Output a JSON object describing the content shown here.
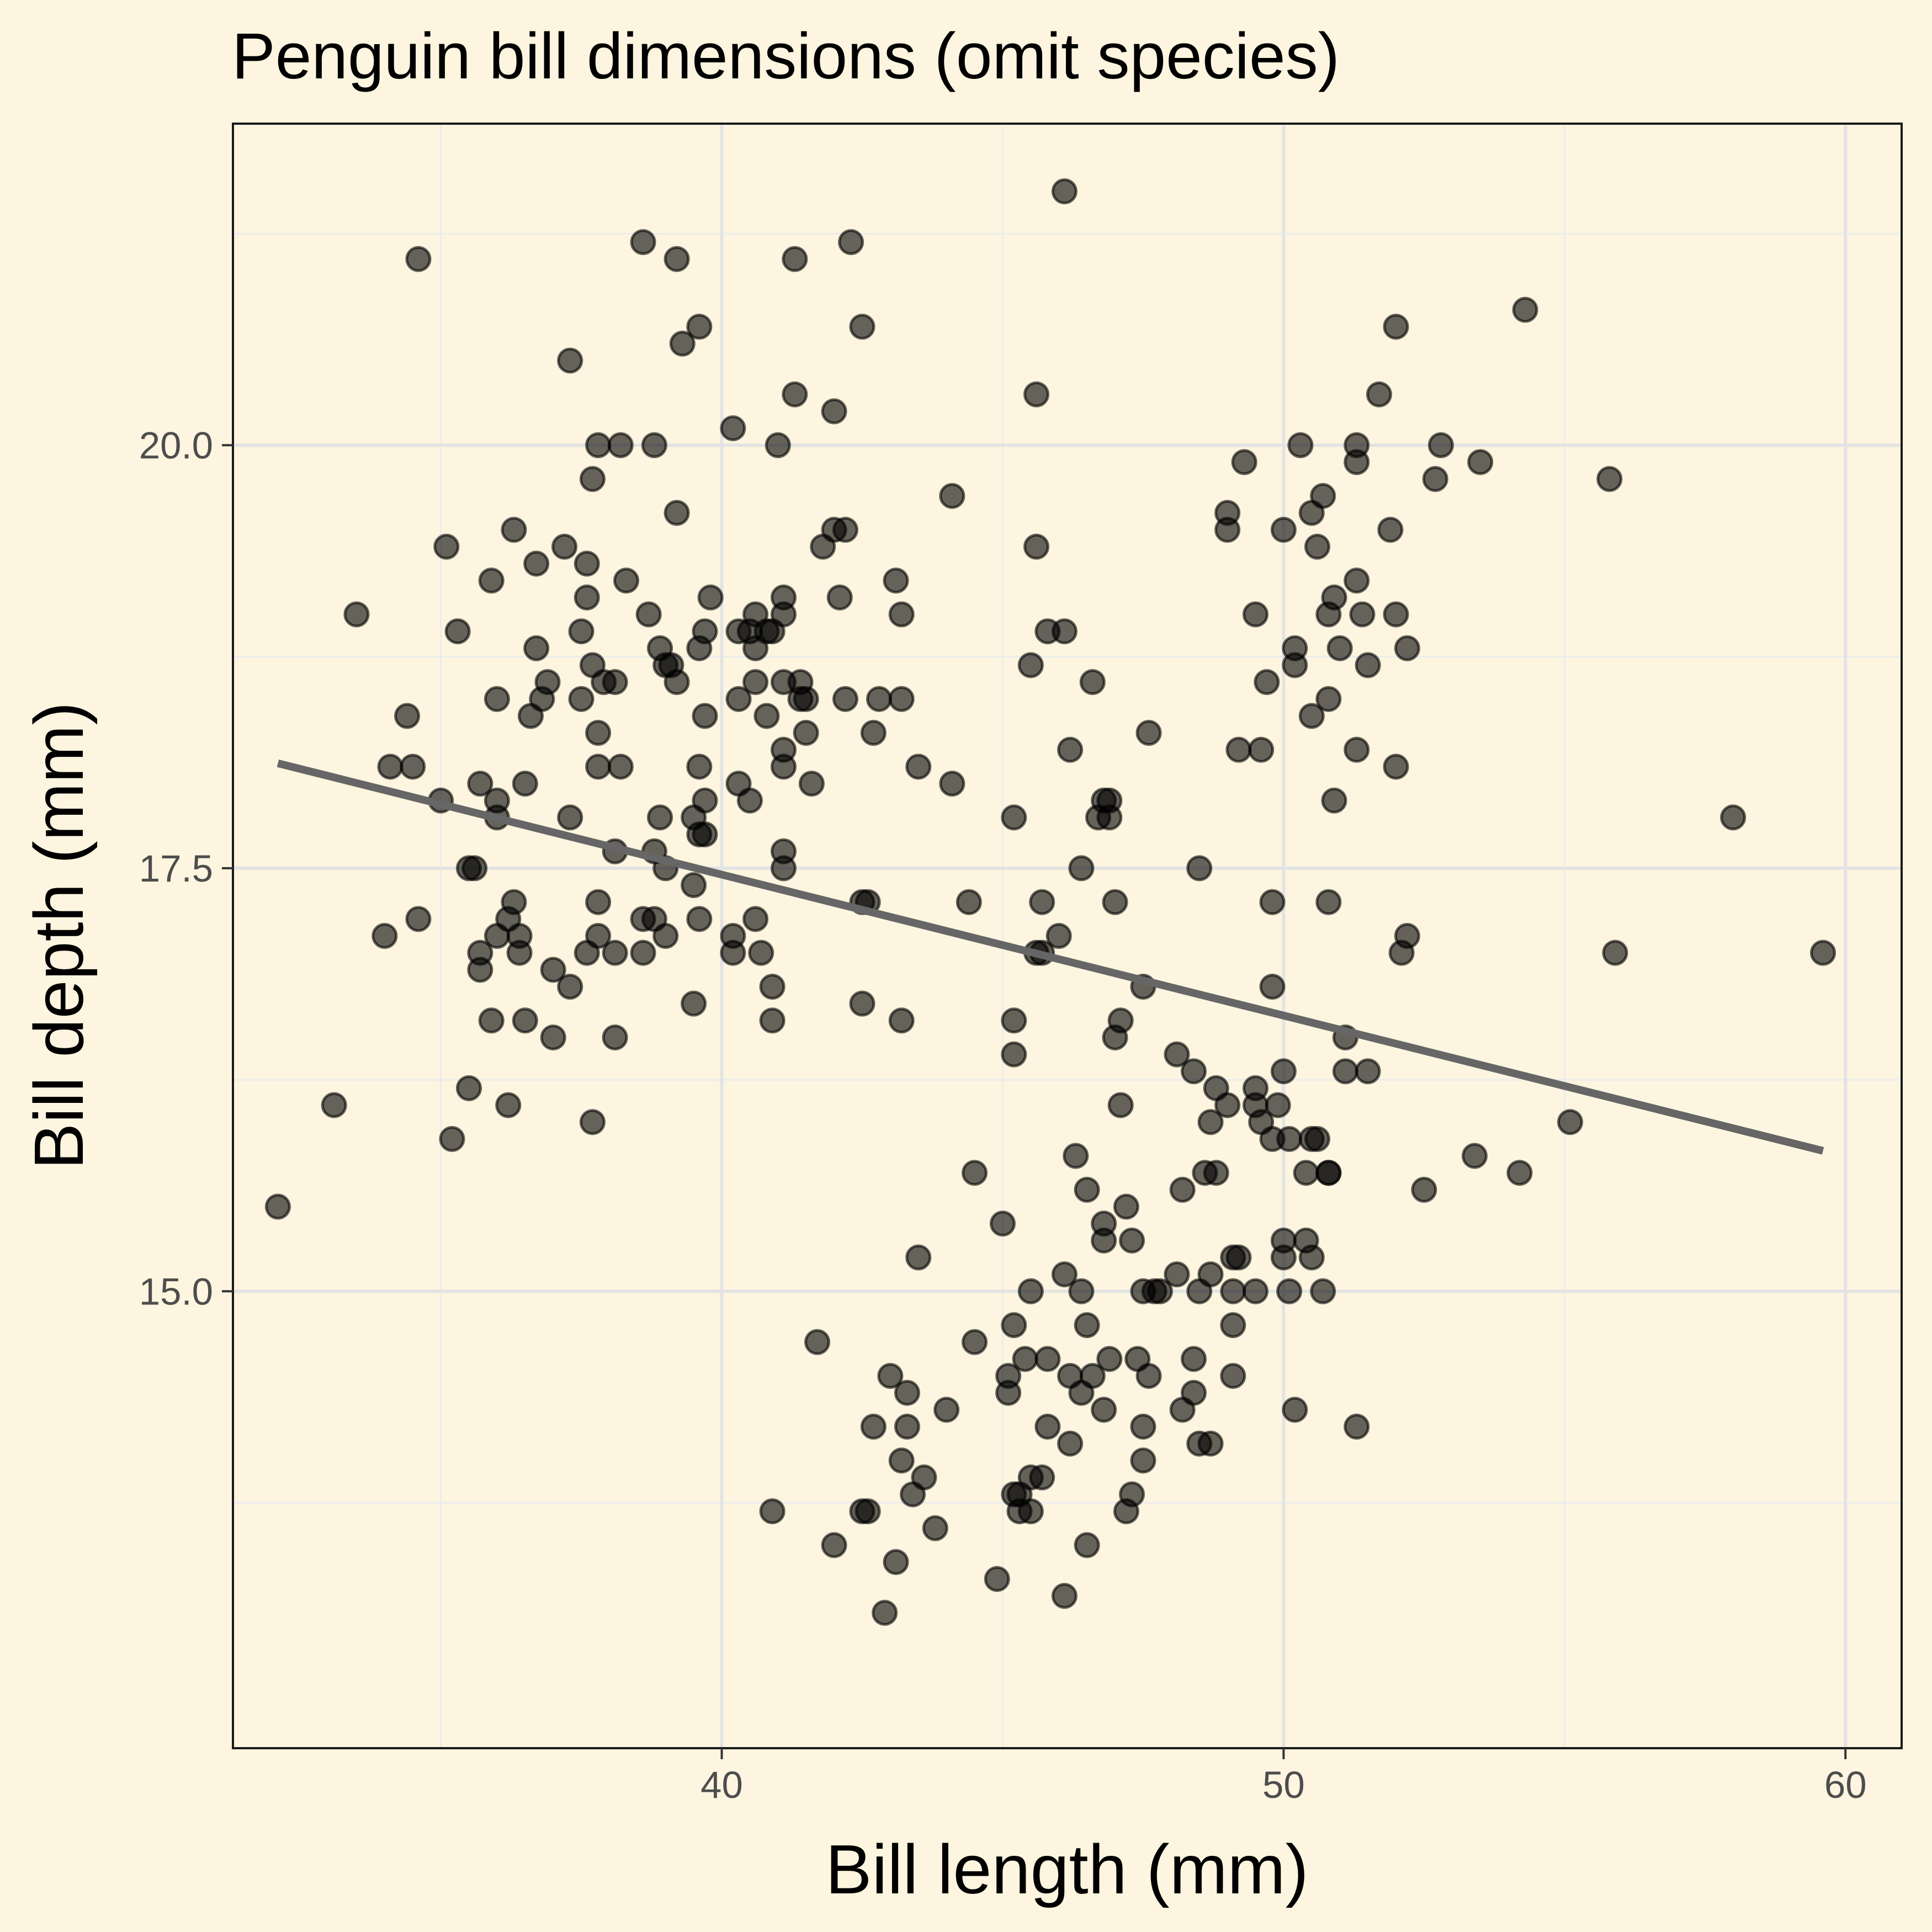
{
  "chart_data": {
    "type": "scatter",
    "title": "Penguin bill dimensions (omit species)",
    "xlabel": "Bill length (mm)",
    "ylabel": "Bill depth (mm)",
    "xlim": [
      31.3,
      61.0
    ],
    "ylim": [
      12.3,
      21.9
    ],
    "x_ticks": [
      40,
      50,
      60
    ],
    "x_tick_labels": [
      "40",
      "50",
      "60"
    ],
    "y_ticks": [
      15.0,
      17.5,
      20.0
    ],
    "y_tick_labels": [
      "15.0",
      "17.5",
      "20.0"
    ],
    "x_minor_ticks": [
      35,
      45,
      55
    ],
    "y_minor_ticks": [
      13.75,
      16.25,
      18.75,
      21.25
    ],
    "grid": true,
    "legend": "none",
    "colors": {
      "background": "#fdf5df",
      "point": "#000000",
      "trend_line": "#666666",
      "grid": "#e3e3e3"
    },
    "trend_line": {
      "x": [
        32.1,
        59.6
      ],
      "y": [
        18.12,
        15.83
      ]
    },
    "points": [
      [
        32.1,
        15.5
      ],
      [
        33.1,
        16.1
      ],
      [
        33.5,
        19.0
      ],
      [
        34.0,
        17.1
      ],
      [
        34.1,
        18.1
      ],
      [
        34.4,
        18.4
      ],
      [
        34.5,
        18.1
      ],
      [
        34.6,
        21.1
      ],
      [
        34.6,
        17.2
      ],
      [
        35.0,
        17.9
      ],
      [
        35.1,
        19.4
      ],
      [
        35.2,
        15.9
      ],
      [
        35.3,
        18.9
      ],
      [
        35.5,
        17.5
      ],
      [
        35.5,
        16.2
      ],
      [
        35.6,
        17.5
      ],
      [
        35.7,
        18.0
      ],
      [
        35.7,
        17.0
      ],
      [
        35.7,
        16.9
      ],
      [
        35.9,
        16.6
      ],
      [
        35.9,
        19.2
      ],
      [
        36.0,
        18.5
      ],
      [
        36.0,
        17.9
      ],
      [
        36.0,
        17.8
      ],
      [
        36.0,
        17.1
      ],
      [
        36.2,
        17.2
      ],
      [
        36.2,
        16.1
      ],
      [
        36.3,
        19.5
      ],
      [
        36.3,
        17.3
      ],
      [
        36.4,
        17.1
      ],
      [
        36.4,
        17.0
      ],
      [
        36.5,
        18.0
      ],
      [
        36.5,
        16.6
      ],
      [
        36.6,
        18.4
      ],
      [
        36.7,
        19.3
      ],
      [
        36.7,
        18.8
      ],
      [
        36.8,
        18.5
      ],
      [
        36.9,
        18.6
      ],
      [
        37.0,
        16.9
      ],
      [
        37.0,
        16.5
      ],
      [
        37.2,
        19.4
      ],
      [
        37.3,
        20.5
      ],
      [
        37.3,
        17.8
      ],
      [
        37.3,
        16.8
      ],
      [
        37.5,
        18.9
      ],
      [
        37.5,
        18.5
      ],
      [
        37.6,
        19.3
      ],
      [
        37.6,
        19.1
      ],
      [
        37.6,
        17.0
      ],
      [
        37.7,
        18.7
      ],
      [
        37.7,
        16.0
      ],
      [
        37.7,
        19.8
      ],
      [
        37.8,
        20.0
      ],
      [
        37.8,
        18.3
      ],
      [
        37.8,
        18.1
      ],
      [
        37.8,
        17.3
      ],
      [
        37.8,
        17.1
      ],
      [
        37.9,
        18.6
      ],
      [
        38.1,
        18.6
      ],
      [
        38.1,
        17.6
      ],
      [
        38.1,
        17.0
      ],
      [
        38.1,
        16.5
      ],
      [
        38.2,
        20.0
      ],
      [
        38.2,
        18.1
      ],
      [
        38.3,
        19.2
      ],
      [
        38.6,
        21.2
      ],
      [
        38.6,
        17.2
      ],
      [
        38.6,
        17.0
      ],
      [
        38.7,
        19.0
      ],
      [
        38.8,
        20.0
      ],
      [
        38.8,
        17.6
      ],
      [
        38.8,
        17.2
      ],
      [
        38.9,
        18.8
      ],
      [
        38.9,
        17.8
      ],
      [
        39.0,
        18.7
      ],
      [
        39.0,
        17.5
      ],
      [
        39.0,
        17.1
      ],
      [
        39.1,
        18.7
      ],
      [
        39.2,
        21.1
      ],
      [
        39.2,
        19.6
      ],
      [
        39.2,
        18.6
      ],
      [
        39.3,
        20.6
      ],
      [
        39.5,
        17.8
      ],
      [
        39.5,
        17.4
      ],
      [
        39.5,
        16.7
      ],
      [
        39.6,
        20.7
      ],
      [
        39.6,
        18.8
      ],
      [
        39.6,
        18.1
      ],
      [
        39.6,
        17.7
      ],
      [
        39.6,
        17.2
      ],
      [
        39.7,
        18.9
      ],
      [
        39.7,
        18.4
      ],
      [
        39.7,
        17.9
      ],
      [
        39.7,
        17.7
      ],
      [
        39.8,
        19.1
      ],
      [
        40.2,
        20.1
      ],
      [
        40.2,
        17.1
      ],
      [
        40.2,
        17.0
      ],
      [
        40.3,
        18.9
      ],
      [
        40.3,
        18.5
      ],
      [
        40.3,
        18.0
      ],
      [
        40.5,
        18.9
      ],
      [
        40.5,
        17.9
      ],
      [
        40.6,
        19.0
      ],
      [
        40.6,
        18.8
      ],
      [
        40.6,
        18.6
      ],
      [
        40.6,
        17.2
      ],
      [
        40.7,
        17.0
      ],
      [
        40.8,
        18.9
      ],
      [
        40.8,
        18.4
      ],
      [
        40.9,
        18.9
      ],
      [
        40.9,
        16.8
      ],
      [
        40.9,
        16.6
      ],
      [
        41.0,
        20.0
      ],
      [
        41.1,
        19.1
      ],
      [
        41.1,
        19.0
      ],
      [
        41.1,
        18.6
      ],
      [
        41.1,
        18.2
      ],
      [
        41.1,
        18.1
      ],
      [
        41.1,
        17.6
      ],
      [
        41.1,
        17.5
      ],
      [
        41.3,
        21.1
      ],
      [
        41.3,
        20.3
      ],
      [
        41.4,
        18.6
      ],
      [
        41.4,
        18.5
      ],
      [
        41.5,
        18.5
      ],
      [
        41.5,
        18.3
      ],
      [
        41.6,
        18.0
      ],
      [
        41.8,
        19.4
      ],
      [
        42.0,
        20.2
      ],
      [
        42.0,
        19.5
      ],
      [
        42.1,
        19.1
      ],
      [
        42.2,
        19.5
      ],
      [
        42.2,
        18.5
      ],
      [
        42.3,
        21.2
      ],
      [
        42.5,
        20.7
      ],
      [
        42.5,
        17.3
      ],
      [
        42.5,
        16.7
      ],
      [
        42.6,
        17.3
      ],
      [
        42.7,
        18.3
      ],
      [
        42.8,
        18.5
      ],
      [
        43.1,
        19.2
      ],
      [
        43.2,
        19.0
      ],
      [
        43.2,
        18.5
      ],
      [
        43.2,
        16.6
      ],
      [
        43.5,
        18.1
      ],
      [
        44.1,
        19.7
      ],
      [
        44.1,
        18.0
      ],
      [
        44.4,
        17.3
      ],
      [
        45.2,
        17.8
      ],
      [
        45.2,
        16.6
      ],
      [
        45.2,
        16.4
      ],
      [
        45.5,
        18.7
      ],
      [
        45.6,
        20.3
      ],
      [
        45.6,
        19.4
      ],
      [
        45.6,
        17.0
      ],
      [
        45.7,
        17.3
      ],
      [
        45.7,
        17.0
      ],
      [
        45.8,
        18.9
      ],
      [
        46.0,
        17.1
      ],
      [
        46.1,
        18.9
      ],
      [
        46.1,
        21.5
      ],
      [
        46.2,
        18.2
      ],
      [
        46.4,
        17.5
      ],
      [
        46.6,
        18.6
      ],
      [
        46.7,
        17.8
      ],
      [
        46.8,
        17.9
      ],
      [
        46.9,
        17.8
      ],
      [
        46.9,
        17.9
      ],
      [
        47.0,
        17.3
      ],
      [
        47.0,
        16.5
      ],
      [
        47.1,
        16.6
      ],
      [
        47.1,
        16.1
      ],
      [
        47.5,
        16.8
      ],
      [
        47.6,
        18.3
      ],
      [
        48.1,
        16.4
      ],
      [
        48.4,
        16.3
      ],
      [
        48.5,
        17.5
      ],
      [
        48.7,
        16.0
      ],
      [
        48.8,
        16.2
      ],
      [
        49.0,
        19.6
      ],
      [
        49.0,
        19.5
      ],
      [
        49.0,
        16.1
      ],
      [
        49.2,
        18.2
      ],
      [
        49.3,
        19.9
      ],
      [
        49.5,
        19.0
      ],
      [
        49.5,
        16.2
      ],
      [
        49.5,
        16.1
      ],
      [
        49.6,
        18.2
      ],
      [
        49.6,
        16.0
      ],
      [
        49.7,
        18.6
      ],
      [
        49.8,
        17.3
      ],
      [
        49.8,
        16.8
      ],
      [
        49.8,
        15.9
      ],
      [
        49.9,
        16.1
      ],
      [
        50.0,
        19.5
      ],
      [
        50.0,
        16.3
      ],
      [
        50.1,
        15.9
      ],
      [
        50.2,
        18.8
      ],
      [
        50.2,
        18.7
      ],
      [
        50.3,
        20.0
      ],
      [
        50.4,
        15.7
      ],
      [
        50.5,
        19.6
      ],
      [
        50.5,
        18.4
      ],
      [
        50.5,
        15.9
      ],
      [
        50.6,
        19.4
      ],
      [
        50.6,
        15.9
      ],
      [
        50.7,
        19.7
      ],
      [
        50.8,
        18.5
      ],
      [
        50.8,
        17.3
      ],
      [
        50.8,
        15.7
      ],
      [
        50.8,
        19.0
      ],
      [
        50.9,
        19.1
      ],
      [
        50.9,
        17.9
      ],
      [
        51.0,
        18.8
      ],
      [
        51.1,
        16.5
      ],
      [
        51.1,
        16.3
      ],
      [
        51.3,
        20.0
      ],
      [
        51.3,
        19.9
      ],
      [
        51.3,
        19.2
      ],
      [
        51.3,
        18.2
      ],
      [
        51.4,
        19.0
      ],
      [
        51.5,
        18.7
      ],
      [
        51.5,
        16.3
      ],
      [
        51.7,
        20.3
      ],
      [
        51.9,
        19.5
      ],
      [
        52.0,
        20.7
      ],
      [
        52.0,
        19.0
      ],
      [
        52.0,
        18.1
      ],
      [
        52.1,
        17.0
      ],
      [
        52.2,
        18.8
      ],
      [
        52.2,
        17.1
      ],
      [
        52.5,
        15.6
      ],
      [
        52.7,
        19.8
      ],
      [
        52.8,
        20.0
      ],
      [
        53.5,
        19.9
      ],
      [
        53.4,
        15.8
      ],
      [
        54.2,
        15.7
      ],
      [
        54.3,
        20.8
      ],
      [
        55.1,
        16.0
      ],
      [
        55.8,
        19.8
      ],
      [
        55.9,
        17.0
      ],
      [
        58.0,
        17.8
      ],
      [
        59.6,
        17.0
      ],
      [
        41.7,
        14.7
      ],
      [
        40.9,
        13.7
      ],
      [
        42.5,
        13.7
      ],
      [
        42.0,
        13.5
      ],
      [
        42.6,
        13.7
      ],
      [
        42.7,
        14.2
      ],
      [
        42.9,
        13.1
      ],
      [
        43.0,
        14.5
      ],
      [
        43.1,
        13.4
      ],
      [
        43.2,
        14.0
      ],
      [
        43.3,
        14.4
      ],
      [
        43.3,
        14.2
      ],
      [
        43.4,
        13.8
      ],
      [
        43.5,
        15.2
      ],
      [
        43.6,
        13.9
      ],
      [
        43.8,
        13.6
      ],
      [
        44.0,
        14.3
      ],
      [
        44.5,
        14.7
      ],
      [
        44.5,
        15.7
      ],
      [
        44.9,
        13.3
      ],
      [
        45.0,
        15.4
      ],
      [
        45.1,
        14.5
      ],
      [
        45.1,
        14.4
      ],
      [
        45.2,
        14.8
      ],
      [
        45.2,
        13.8
      ],
      [
        45.3,
        13.8
      ],
      [
        45.3,
        13.7
      ],
      [
        45.4,
        14.6
      ],
      [
        45.5,
        15.0
      ],
      [
        45.5,
        13.7
      ],
      [
        45.5,
        13.9
      ],
      [
        45.7,
        13.9
      ],
      [
        45.8,
        14.6
      ],
      [
        45.8,
        14.2
      ],
      [
        46.1,
        15.1
      ],
      [
        46.1,
        13.2
      ],
      [
        46.2,
        14.5
      ],
      [
        46.2,
        14.1
      ],
      [
        46.3,
        15.8
      ],
      [
        46.4,
        15.0
      ],
      [
        46.4,
        14.4
      ],
      [
        46.5,
        15.6
      ],
      [
        46.5,
        14.8
      ],
      [
        46.5,
        13.5
      ],
      [
        46.6,
        14.5
      ],
      [
        46.8,
        15.4
      ],
      [
        46.8,
        14.3
      ],
      [
        46.8,
        15.3
      ],
      [
        46.9,
        14.6
      ],
      [
        47.2,
        15.5
      ],
      [
        47.2,
        13.7
      ],
      [
        47.3,
        15.3
      ],
      [
        47.3,
        13.8
      ],
      [
        47.4,
        14.6
      ],
      [
        47.5,
        15.0
      ],
      [
        47.5,
        14.2
      ],
      [
        47.5,
        14.0
      ],
      [
        47.6,
        14.5
      ],
      [
        47.7,
        15.0
      ],
      [
        47.8,
        15.0
      ],
      [
        48.1,
        15.1
      ],
      [
        48.2,
        15.6
      ],
      [
        48.2,
        14.3
      ],
      [
        48.4,
        14.4
      ],
      [
        48.4,
        14.6
      ],
      [
        48.5,
        15.0
      ],
      [
        48.5,
        14.1
      ],
      [
        48.6,
        15.7
      ],
      [
        48.7,
        15.1
      ],
      [
        48.7,
        14.1
      ],
      [
        48.8,
        15.7
      ],
      [
        49.1,
        15.0
      ],
      [
        49.1,
        14.5
      ],
      [
        49.1,
        15.2
      ],
      [
        49.1,
        14.8
      ],
      [
        49.2,
        15.2
      ],
      [
        49.5,
        15.0
      ],
      [
        50.0,
        15.3
      ],
      [
        50.0,
        15.2
      ],
      [
        50.1,
        15.0
      ],
      [
        50.2,
        14.3
      ],
      [
        50.4,
        15.3
      ],
      [
        50.5,
        15.2
      ],
      [
        50.7,
        15.0
      ],
      [
        50.8,
        15.7
      ],
      [
        51.3,
        14.2
      ]
    ]
  }
}
